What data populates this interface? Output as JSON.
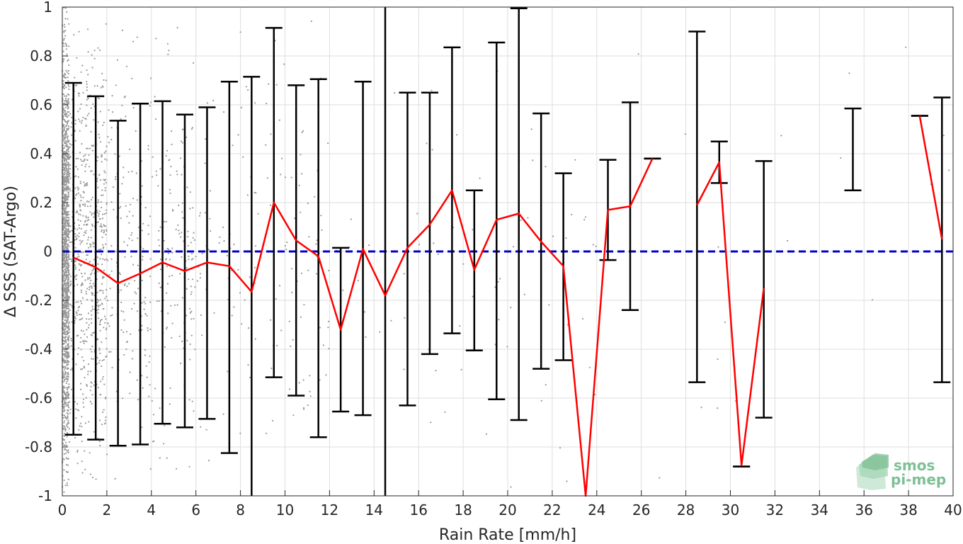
{
  "chart_data": {
    "type": "scatter",
    "xlabel": "Rain Rate [mm/h]",
    "ylabel": "Δ SSS (SAT-Argo)",
    "xlim": [
      0,
      40
    ],
    "ylim": [
      -1,
      1
    ],
    "xticks": [
      0,
      2,
      4,
      6,
      8,
      10,
      12,
      14,
      16,
      18,
      20,
      22,
      24,
      26,
      28,
      30,
      32,
      34,
      36,
      38,
      40
    ],
    "yticks": [
      -1,
      -0.8,
      -0.6,
      -0.4,
      -0.2,
      0,
      0.2,
      0.4,
      0.6,
      0.8,
      1
    ],
    "ytick_labels": [
      "-1",
      "-0.8",
      "-0.6",
      "-0.4",
      "-0.2",
      "0",
      "0.2",
      "0.4",
      "0.6",
      "0.8",
      "1"
    ],
    "grid": true,
    "reference_line": {
      "y": 0,
      "color": "#0000cc",
      "style": "dashed"
    },
    "errorbars": [
      {
        "x": 0.5,
        "low": -0.75,
        "high": 0.69
      },
      {
        "x": 1.5,
        "low": -0.77,
        "high": 0.635
      },
      {
        "x": 2.5,
        "low": -0.795,
        "high": 0.535
      },
      {
        "x": 3.5,
        "low": -0.79,
        "high": 0.605
      },
      {
        "x": 4.5,
        "low": -0.705,
        "high": 0.615
      },
      {
        "x": 5.5,
        "low": -0.72,
        "high": 0.56
      },
      {
        "x": 6.5,
        "low": -0.685,
        "high": 0.59
      },
      {
        "x": 7.5,
        "low": -0.825,
        "high": 0.695
      },
      {
        "x": 8.5,
        "low": -1.05,
        "high": 0.715
      },
      {
        "x": 9.5,
        "low": -0.515,
        "high": 0.915
      },
      {
        "x": 10.5,
        "low": -0.59,
        "high": 0.68
      },
      {
        "x": 11.5,
        "low": -0.76,
        "high": 0.705
      },
      {
        "x": 12.5,
        "low": -0.655,
        "high": 0.015
      },
      {
        "x": 13.5,
        "low": -0.67,
        "high": 0.695
      },
      {
        "x": 14.5,
        "low": -1.05,
        "high": 1.05
      },
      {
        "x": 15.5,
        "low": -0.63,
        "high": 0.65
      },
      {
        "x": 16.5,
        "low": -0.42,
        "high": 0.65
      },
      {
        "x": 17.5,
        "low": -0.335,
        "high": 0.835
      },
      {
        "x": 18.5,
        "low": -0.405,
        "high": 0.25
      },
      {
        "x": 19.5,
        "low": -0.605,
        "high": 0.855
      },
      {
        "x": 20.5,
        "low": -0.69,
        "high": 0.995
      },
      {
        "x": 21.5,
        "low": -0.48,
        "high": 0.565
      },
      {
        "x": 22.5,
        "low": -0.445,
        "high": 0.32
      },
      {
        "x": 24.5,
        "low": -0.035,
        "high": 0.375
      },
      {
        "x": 25.5,
        "low": -0.24,
        "high": 0.61
      },
      {
        "x": 26.5,
        "low": 0.38,
        "high": 0.38
      },
      {
        "x": 28.5,
        "low": -0.535,
        "high": 0.9
      },
      {
        "x": 29.5,
        "low": 0.28,
        "high": 0.45
      },
      {
        "x": 30.5,
        "low": -0.88,
        "high": -0.88
      },
      {
        "x": 31.5,
        "low": -0.68,
        "high": 0.37
      },
      {
        "x": 35.5,
        "low": 0.25,
        "high": 0.585
      },
      {
        "x": 38.5,
        "low": 0.555,
        "high": 0.555
      },
      {
        "x": 39.5,
        "low": -0.535,
        "high": 0.63
      }
    ],
    "mean_line_segments": [
      [
        [
          0.5,
          -0.025
        ],
        [
          1.5,
          -0.065
        ],
        [
          2.5,
          -0.13
        ],
        [
          3.5,
          -0.09
        ],
        [
          4.5,
          -0.045
        ],
        [
          5.5,
          -0.08
        ],
        [
          6.5,
          -0.045
        ],
        [
          7.5,
          -0.06
        ],
        [
          8.5,
          -0.165
        ],
        [
          9.5,
          0.2
        ],
        [
          10.5,
          0.045
        ],
        [
          11.5,
          -0.02
        ],
        [
          12.5,
          -0.32
        ],
        [
          13.5,
          0.01
        ],
        [
          14.5,
          -0.18
        ],
        [
          15.5,
          0.015
        ],
        [
          16.5,
          0.11
        ],
        [
          17.5,
          0.25
        ],
        [
          18.5,
          -0.075
        ],
        [
          19.5,
          0.13
        ],
        [
          20.5,
          0.155
        ],
        [
          21.5,
          0.04
        ],
        [
          22.5,
          -0.06
        ],
        [
          23.5,
          -1.02
        ],
        [
          24.5,
          0.17
        ],
        [
          25.5,
          0.185
        ],
        [
          26.5,
          0.38
        ]
      ],
      [
        [
          28.5,
          0.19
        ],
        [
          29.5,
          0.365
        ],
        [
          30.5,
          -0.875
        ],
        [
          31.5,
          -0.15
        ]
      ],
      [
        [
          38.5,
          0.555
        ],
        [
          39.5,
          0.05
        ]
      ]
    ],
    "scatter_color": "#999999",
    "mean_color": "#ff0000",
    "errorbar_color": "#000000",
    "logo": "smos pi-mep"
  }
}
